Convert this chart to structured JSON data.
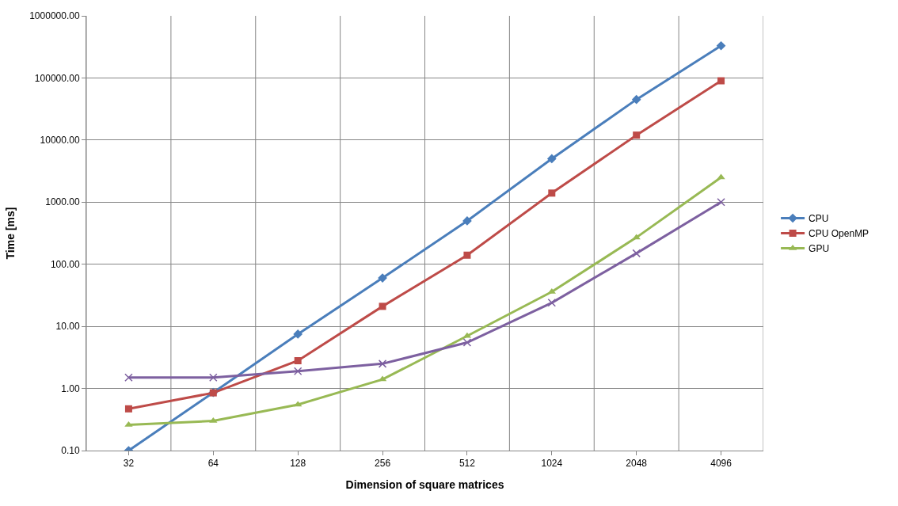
{
  "chart_data": {
    "type": "line",
    "xlabel": "Dimension of square matrices",
    "ylabel": "Time [ms]",
    "categories": [
      "32",
      "64",
      "128",
      "256",
      "512",
      "1024",
      "2048",
      "4096"
    ],
    "series": [
      {
        "name": "CPU",
        "color": "#4a7ebb",
        "marker": "diamond",
        "values": [
          0.1,
          0.86,
          7.5,
          60,
          500,
          5000,
          45000,
          330000
        ]
      },
      {
        "name": "CPU OpenMP",
        "color": "#be4b48",
        "marker": "square",
        "values": [
          0.47,
          0.85,
          2.8,
          21,
          140,
          1400,
          12000,
          90000
        ]
      },
      {
        "name": "GPU",
        "color": "#98b954",
        "marker": "triangle",
        "values": [
          0.26,
          0.3,
          0.55,
          1.4,
          7,
          36,
          270,
          2500
        ]
      },
      {
        "color": "#7d60a0",
        "marker": "cross",
        "values": [
          1.5,
          1.5,
          1.9,
          2.5,
          5.5,
          24,
          150,
          1000
        ]
      }
    ],
    "log": true,
    "ylim": [
      0.1,
      1000000
    ],
    "yticks": [
      {
        "value": 0.1,
        "label": "0.10"
      },
      {
        "value": 1,
        "label": "1.00"
      },
      {
        "value": 10,
        "label": "10.00"
      },
      {
        "value": 100,
        "label": "100.00"
      },
      {
        "value": 1000,
        "label": "1000.00"
      },
      {
        "value": 10000,
        "label": "10000.00"
      },
      {
        "value": 100000,
        "label": "100000.00"
      },
      {
        "value": 1000000,
        "label": "1000000.00"
      }
    ],
    "grid": true,
    "legend": "right"
  }
}
